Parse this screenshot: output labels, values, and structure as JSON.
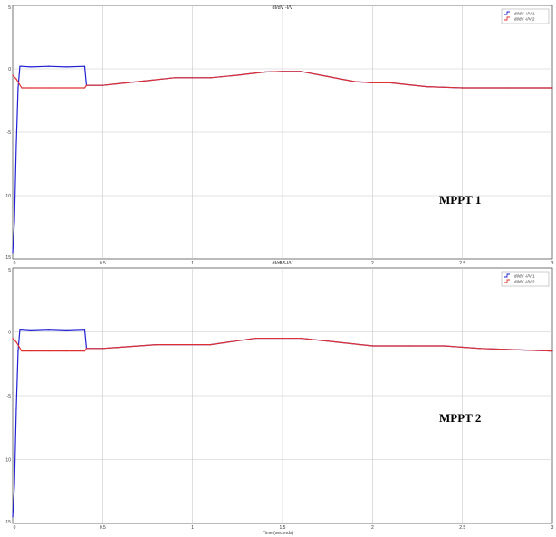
{
  "chart_data": [
    {
      "type": "line",
      "title": "dI/dV   -I/V",
      "xlabel": "",
      "ylabel": "",
      "xlim": [
        0,
        3
      ],
      "ylim": [
        -15,
        5
      ],
      "x_ticks": [
        "0",
        "0.5",
        "1",
        "1.5",
        "2",
        "2.5",
        "3"
      ],
      "y_ticks": [
        "5",
        "0",
        "-5",
        "-10",
        "-15"
      ],
      "grid": true,
      "legend_position": "top-right",
      "annotation": "MPPT 1",
      "series": [
        {
          "name": "dI/dV   -I/V 1",
          "color": "#1f1fd6",
          "x": [
            0,
            0.01,
            0.02,
            0.03,
            0.04,
            0.05,
            0.1,
            0.2,
            0.3,
            0.4,
            0.41,
            0.5,
            0.7,
            0.9,
            1.0,
            1.1,
            1.25,
            1.4,
            1.5,
            1.6,
            1.75,
            1.9,
            2.0,
            2.1,
            2.3,
            2.5,
            2.75,
            3.0
          ],
          "y": [
            -14.5,
            -12,
            -6,
            -1.5,
            0.2,
            0.2,
            0.15,
            0.2,
            0.15,
            0.2,
            -1.3,
            -1.3,
            -1.0,
            -0.7,
            -0.7,
            -0.7,
            -0.5,
            -0.25,
            -0.2,
            -0.2,
            -0.6,
            -1.0,
            -1.1,
            -1.1,
            -1.4,
            -1.5,
            -1.5,
            -1.5
          ]
        },
        {
          "name": "dI/dV   -I/V 2",
          "color": "#e03131",
          "x": [
            0,
            0.02,
            0.05,
            0.1,
            0.2,
            0.3,
            0.4,
            0.41,
            0.5,
            0.7,
            0.9,
            1.0,
            1.1,
            1.25,
            1.4,
            1.5,
            1.6,
            1.75,
            1.9,
            2.0,
            2.1,
            2.3,
            2.5,
            2.75,
            3.0
          ],
          "y": [
            -0.5,
            -0.8,
            -1.5,
            -1.5,
            -1.5,
            -1.5,
            -1.5,
            -1.3,
            -1.3,
            -1.0,
            -0.7,
            -0.7,
            -0.7,
            -0.5,
            -0.25,
            -0.2,
            -0.2,
            -0.6,
            -1.0,
            -1.1,
            -1.1,
            -1.4,
            -1.5,
            -1.5,
            -1.5
          ]
        }
      ]
    },
    {
      "type": "line",
      "title": "dI/dV   -I/V",
      "xlabel": "Time (seconds)",
      "ylabel": "",
      "xlim": [
        0,
        3
      ],
      "ylim": [
        -15,
        5
      ],
      "x_ticks": [
        "0",
        "0.5",
        "1",
        "1.5",
        "2",
        "2.5",
        "3"
      ],
      "y_ticks": [
        "5",
        "0",
        "-5",
        "-10",
        "-15"
      ],
      "grid": true,
      "legend_position": "top-right",
      "annotation": "MPPT 2",
      "series": [
        {
          "name": "dI/dV   -I/V 1",
          "color": "#1f1fd6",
          "x": [
            0,
            0.01,
            0.02,
            0.03,
            0.04,
            0.05,
            0.1,
            0.2,
            0.3,
            0.4,
            0.41,
            0.5,
            0.8,
            1.1,
            1.35,
            1.5,
            1.6,
            1.8,
            2.0,
            2.2,
            2.4,
            2.6,
            2.8,
            3.0
          ],
          "y": [
            -14.5,
            -12,
            -6,
            -1.5,
            0.2,
            0.2,
            0.15,
            0.2,
            0.15,
            0.2,
            -1.3,
            -1.3,
            -1.0,
            -1.0,
            -0.5,
            -0.5,
            -0.5,
            -0.8,
            -1.1,
            -1.1,
            -1.1,
            -1.3,
            -1.4,
            -1.5
          ]
        },
        {
          "name": "dI/dV   -I/V 2",
          "color": "#e03131",
          "x": [
            0,
            0.02,
            0.05,
            0.1,
            0.2,
            0.3,
            0.4,
            0.41,
            0.5,
            0.8,
            1.1,
            1.35,
            1.5,
            1.6,
            1.8,
            2.0,
            2.2,
            2.4,
            2.6,
            2.8,
            3.0
          ],
          "y": [
            -0.5,
            -0.8,
            -1.5,
            -1.5,
            -1.5,
            -1.5,
            -1.5,
            -1.3,
            -1.3,
            -1.0,
            -1.0,
            -0.5,
            -0.5,
            -0.5,
            -0.8,
            -1.1,
            -1.1,
            -1.1,
            -1.3,
            -1.4,
            -1.5
          ]
        }
      ]
    }
  ]
}
